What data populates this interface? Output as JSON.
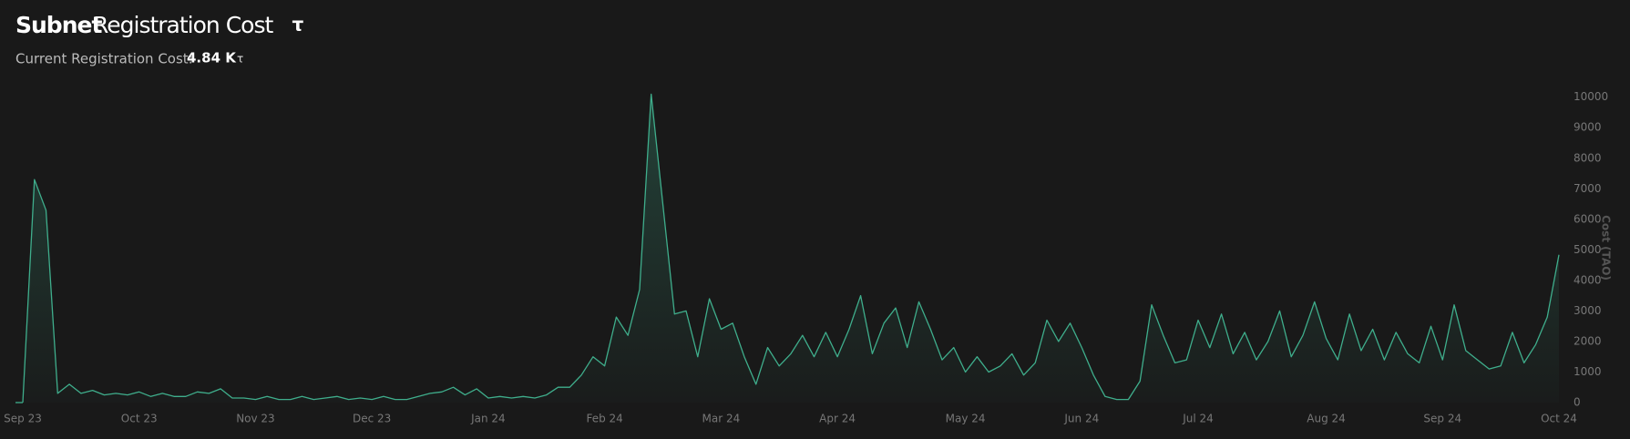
{
  "chart_data": {
    "type": "area",
    "title_bold": "Subnet",
    "title": "Registration Cost",
    "title_symbol": "τ",
    "current_label": "Current Registration Cost:",
    "current_value": "4.84 K",
    "current_symbol": "τ",
    "y_label": "Cost (TAO)",
    "categories": [
      "Sep 23",
      null,
      null,
      null,
      null,
      null,
      null,
      null,
      null,
      null,
      "Oct 23",
      null,
      null,
      null,
      null,
      null,
      null,
      null,
      null,
      null,
      "Nov 23",
      null,
      null,
      null,
      null,
      null,
      null,
      null,
      null,
      null,
      "Dec 23",
      null,
      null,
      null,
      null,
      null,
      null,
      null,
      null,
      null,
      "Jan 24",
      null,
      null,
      null,
      null,
      null,
      null,
      null,
      null,
      null,
      "Feb 24",
      null,
      null,
      null,
      null,
      null,
      null,
      null,
      null,
      null,
      "Mar 24",
      null,
      null,
      null,
      null,
      null,
      null,
      null,
      null,
      null,
      "Apr 24",
      null,
      null,
      null,
      null,
      null,
      null,
      null,
      null,
      null,
      null,
      "May 24",
      null,
      null,
      null,
      null,
      null,
      null,
      null,
      null,
      null,
      "Jun 24",
      null,
      null,
      null,
      null,
      null,
      null,
      null,
      null,
      null,
      "Jul 24",
      null,
      null,
      null,
      null,
      null,
      null,
      null,
      null,
      null,
      null,
      "Aug 24",
      null,
      null,
      null,
      null,
      null,
      null,
      null,
      null,
      null,
      "Sep 24",
      null,
      null,
      null,
      null,
      null,
      null,
      null,
      null,
      null,
      "Oct 24"
    ],
    "values": [
      0,
      7300,
      6300,
      300,
      600,
      300,
      400,
      250,
      300,
      250,
      350,
      200,
      300,
      200,
      200,
      350,
      300,
      450,
      150,
      150,
      100,
      200,
      100,
      100,
      200,
      100,
      150,
      200,
      100,
      150,
      100,
      200,
      100,
      100,
      200,
      300,
      350,
      500,
      250,
      450,
      150,
      200,
      150,
      200,
      150,
      250,
      500,
      500,
      900,
      1500,
      1200,
      2800,
      2200,
      3700,
      10100,
      6500,
      2900,
      3000,
      1500,
      3400,
      2400,
      2600,
      1500,
      600,
      1800,
      1200,
      1600,
      2200,
      1500,
      2300,
      1500,
      2400,
      3500,
      1600,
      2600,
      3100,
      1800,
      3300,
      2400,
      1400,
      1800,
      1000,
      1500,
      1000,
      1200,
      1600,
      900,
      1300,
      2700,
      2000,
      2600,
      1800,
      900,
      200,
      100,
      100,
      700,
      3200,
      2200,
      1300,
      1400,
      2700,
      1800,
      2900,
      1600,
      2300,
      1400,
      2000,
      3000,
      1500,
      2200,
      3300,
      2100,
      1400,
      2900,
      1700,
      2400,
      1400,
      2300,
      1600,
      1300,
      2500,
      1400,
      3200,
      1700,
      1400,
      1100,
      1200,
      2300,
      1300,
      1900,
      2800,
      4840
    ],
    "color": "#3fae8c",
    "ylim": [
      0,
      10200
    ],
    "yticks": [
      0,
      1000,
      2000,
      3000,
      4000,
      5000,
      6000,
      7000,
      8000,
      9000,
      10000
    ]
  }
}
